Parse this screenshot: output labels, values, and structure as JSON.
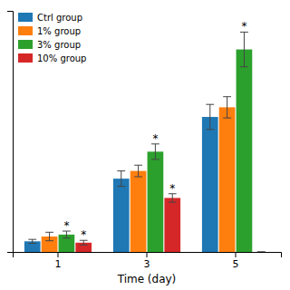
{
  "chart_data": {
    "type": "bar",
    "xlabel": "Time (day)",
    "categories": [
      "1",
      "3",
      "5"
    ],
    "series": [
      {
        "name": "Ctrl group",
        "values": [
          0.055,
          0.38,
          0.7
        ],
        "errors": [
          0.01,
          0.04,
          0.065
        ],
        "significance": [
          null,
          null,
          null
        ]
      },
      {
        "name": "1% group",
        "values": [
          0.08,
          0.42,
          0.75
        ],
        "errors": [
          0.022,
          0.03,
          0.055
        ],
        "significance": [
          null,
          null,
          null
        ]
      },
      {
        "name": "3% group",
        "values": [
          0.09,
          0.52,
          1.05
        ],
        "errors": [
          0.018,
          0.04,
          0.09
        ],
        "significance": [
          "*",
          "*",
          "*"
        ]
      },
      {
        "name": "10% group",
        "values": [
          0.048,
          0.28,
          0.0
        ],
        "errors": [
          0.012,
          0.022,
          0.0
        ],
        "significance": [
          "*",
          "*",
          null
        ]
      }
    ],
    "ylim": [
      0,
      1.25
    ],
    "tick_labels": "x",
    "grid": false,
    "legend": "top-left"
  }
}
